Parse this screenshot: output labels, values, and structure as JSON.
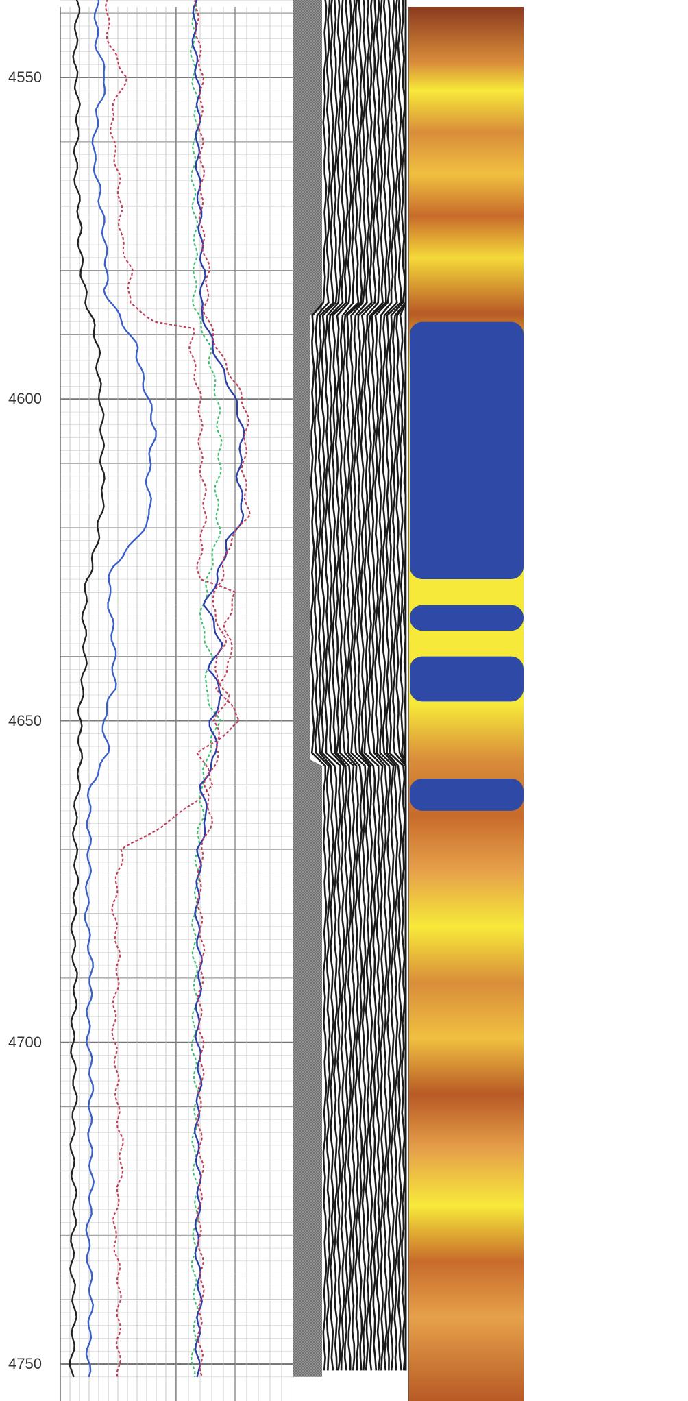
{
  "chart_data": {
    "type": "line",
    "title": "",
    "ylabel": "",
    "y_axis": {
      "direction": "depth-down",
      "range": [
        4535,
        4752
      ],
      "ticks": [
        4550,
        4600,
        4650,
        4700,
        4750
      ],
      "tick_labels": [
        "4550",
        "4600",
        "4650",
        "4700",
        "4750"
      ]
    },
    "grid": true,
    "tracks": [
      {
        "name": "",
        "grid": true,
        "xlim": [
          0,
          10
        ],
        "series": [
          {
            "name": "",
            "style": "solid",
            "color": "#222222",
            "points": [
              [
                4535,
                1.4
              ],
              [
                4550,
                1.4
              ],
              [
                4565,
                1.45
              ],
              [
                4575,
                1.6
              ],
              [
                4580,
                2.0
              ],
              [
                4585,
                2.3
              ],
              [
                4592,
                3.2
              ],
              [
                4600,
                3.6
              ],
              [
                4608,
                3.5
              ],
              [
                4615,
                3.9
              ],
              [
                4620,
                3.3
              ],
              [
                4628,
                2.4
              ],
              [
                4635,
                2.1
              ],
              [
                4642,
                2.0
              ],
              [
                4650,
                1.8
              ],
              [
                4660,
                1.5
              ],
              [
                4670,
                1.3
              ],
              [
                4690,
                1.2
              ],
              [
                4720,
                1.15
              ],
              [
                4752,
                1.1
              ]
            ]
          },
          {
            "name": "",
            "style": "solid",
            "color": "#3a5fc8",
            "points": [
              [
                4535,
                3.0
              ],
              [
                4545,
                3.3
              ],
              [
                4550,
                3.9
              ],
              [
                4555,
                3.2
              ],
              [
                4562,
                3.0
              ],
              [
                4570,
                3.4
              ],
              [
                4575,
                3.9
              ],
              [
                4580,
                4.2
              ],
              [
                4583,
                3.8
              ],
              [
                4586,
                4.6
              ],
              [
                4592,
                6.7
              ],
              [
                4600,
                7.6
              ],
              [
                4605,
                8.1
              ],
              [
                4612,
                7.7
              ],
              [
                4618,
                7.8
              ],
              [
                4622,
                6.4
              ],
              [
                4626,
                4.6
              ],
              [
                4630,
                4.3
              ],
              [
                4635,
                4.4
              ],
              [
                4640,
                4.6
              ],
              [
                4645,
                4.8
              ],
              [
                4650,
                3.7
              ],
              [
                4655,
                4.0
              ],
              [
                4660,
                2.7
              ],
              [
                4670,
                2.4
              ],
              [
                4680,
                2.4
              ],
              [
                4690,
                2.6
              ],
              [
                4700,
                2.5
              ],
              [
                4715,
                2.7
              ],
              [
                4730,
                2.5
              ],
              [
                4745,
                2.6
              ],
              [
                4752,
                2.5
              ]
            ]
          },
          {
            "name": "",
            "style": "dashed",
            "color": "#c0405a",
            "points": [
              [
                4535,
                4.1
              ],
              [
                4545,
                4.3
              ],
              [
                4550,
                5.6
              ],
              [
                4555,
                4.5
              ],
              [
                4565,
                4.9
              ],
              [
                4575,
                5.4
              ],
              [
                4580,
                6.1
              ],
              [
                4585,
                5.8
              ],
              [
                4588,
                8.3
              ],
              [
                4589,
                11.5
              ],
              [
                4592,
                11.5
              ],
              [
                4600,
                12.0
              ],
              [
                4615,
                12.5
              ],
              [
                4628,
                12.1
              ],
              [
                4630,
                15.3
              ],
              [
                4635,
                14.2
              ],
              [
                4640,
                15.0
              ],
              [
                4645,
                13.8
              ],
              [
                4650,
                15.6
              ],
              [
                4655,
                12.0
              ],
              [
                4660,
                13.5
              ],
              [
                4665,
                10.0
              ],
              [
                4670,
                5.3
              ],
              [
                4680,
                4.7
              ],
              [
                4690,
                5.0
              ],
              [
                4700,
                4.6
              ],
              [
                4715,
                5.3
              ],
              [
                4730,
                4.8
              ],
              [
                4745,
                5.2
              ],
              [
                4752,
                5.0
              ]
            ]
          }
        ]
      },
      {
        "name": "",
        "grid": true,
        "xlim": [
          0,
          10
        ],
        "series": [
          {
            "name": "",
            "style": "dashed",
            "color": "#3fc070",
            "points": [
              [
                4535,
                1.4
              ],
              [
                4550,
                1.5
              ],
              [
                4560,
                1.6
              ],
              [
                4570,
                1.4
              ],
              [
                4580,
                1.7
              ],
              [
                4586,
                1.5
              ],
              [
                4592,
                2.7
              ],
              [
                4600,
                3.6
              ],
              [
                4605,
                3.5
              ],
              [
                4610,
                3.7
              ],
              [
                4615,
                3.5
              ],
              [
                4620,
                3.6
              ],
              [
                4625,
                2.9
              ],
              [
                4630,
                2.6
              ],
              [
                4635,
                2.1
              ],
              [
                4640,
                2.8
              ],
              [
                4645,
                2.4
              ],
              [
                4650,
                3.7
              ],
              [
                4655,
                2.6
              ],
              [
                4660,
                2.0
              ],
              [
                4665,
                2.3
              ],
              [
                4670,
                1.7
              ],
              [
                4690,
                1.5
              ],
              [
                4720,
                1.6
              ],
              [
                4752,
                1.5
              ]
            ]
          },
          {
            "name": "",
            "style": "solid",
            "color": "#2c3fa8",
            "points": [
              [
                4535,
                1.5
              ],
              [
                4550,
                1.7
              ],
              [
                4560,
                1.9
              ],
              [
                4570,
                1.8
              ],
              [
                4580,
                2.4
              ],
              [
                4586,
                1.9
              ],
              [
                4592,
                3.2
              ],
              [
                4598,
                4.6
              ],
              [
                4602,
                5.2
              ],
              [
                4606,
                5.6
              ],
              [
                4612,
                5.4
              ],
              [
                4618,
                5.7
              ],
              [
                4622,
                4.3
              ],
              [
                4628,
                3.6
              ],
              [
                4632,
                2.5
              ],
              [
                4638,
                3.7
              ],
              [
                4642,
                2.8
              ],
              [
                4646,
                4.1
              ],
              [
                4650,
                2.9
              ],
              [
                4655,
                3.3
              ],
              [
                4660,
                2.2
              ],
              [
                4665,
                2.7
              ],
              [
                4670,
                1.8
              ],
              [
                4690,
                1.9
              ],
              [
                4720,
                1.8
              ],
              [
                4752,
                1.9
              ]
            ]
          },
          {
            "name": "",
            "style": "dashed",
            "color": "#c0405a",
            "points": [
              [
                4535,
                1.7
              ],
              [
                4550,
                2.0
              ],
              [
                4560,
                2.2
              ],
              [
                4570,
                2.0
              ],
              [
                4580,
                2.7
              ],
              [
                4586,
                2.3
              ],
              [
                4592,
                3.6
              ],
              [
                4598,
                5.1
              ],
              [
                4602,
                5.9
              ],
              [
                4606,
                6.0
              ],
              [
                4612,
                5.8
              ],
              [
                4618,
                6.0
              ],
              [
                4622,
                4.6
              ],
              [
                4628,
                3.9
              ],
              [
                4632,
                2.9
              ],
              [
                4638,
                4.1
              ],
              [
                4642,
                3.2
              ],
              [
                4646,
                4.5
              ],
              [
                4650,
                3.2
              ],
              [
                4655,
                3.6
              ],
              [
                4660,
                2.5
              ],
              [
                4665,
                3.0
              ],
              [
                4670,
                2.0
              ],
              [
                4690,
                2.1
              ],
              [
                4720,
                2.0
              ],
              [
                4752,
                2.1
              ]
            ]
          }
        ]
      },
      {
        "name": "",
        "type": "waveform",
        "note_colors": {
          "background": "#ffffff",
          "stripe": "#1a1a1a",
          "hatch": "#777777"
        },
        "first_arrival_depth_shift": [
          [
            4535,
            0.0
          ],
          [
            4585,
            0.0
          ],
          [
            4590,
            0.15
          ],
          [
            4640,
            0.15
          ],
          [
            4650,
            0.1
          ],
          [
            4660,
            0.02
          ],
          [
            4752,
            0.0
          ]
        ]
      },
      {
        "name": "",
        "type": "heatmap",
        "colormap": {
          "low": "#8b3a1e",
          "mid": "#e6a14a",
          "high": "#f7e93a",
          "flag": "#2e4aa6"
        },
        "flag_intervals": [
          [
            4588,
            4628
          ],
          [
            4632,
            4636
          ],
          [
            4640,
            4647
          ],
          [
            4659,
            4664
          ]
        ]
      }
    ]
  }
}
